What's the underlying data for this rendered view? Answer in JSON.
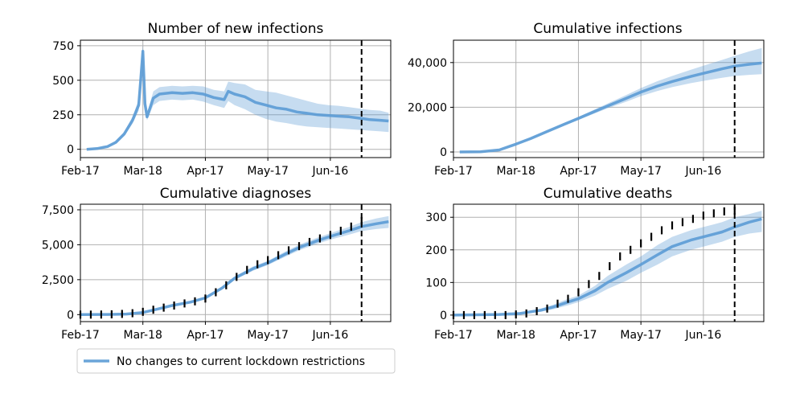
{
  "chart_data": [
    {
      "type": "line",
      "title": "Number of new infections",
      "xlabel": "",
      "ylabel": "",
      "x_ticks": [
        "Feb-17",
        "Mar-18",
        "Apr-17",
        "May-17",
        "Jun-16"
      ],
      "y_ticks": [
        "0",
        "250",
        "500",
        "750"
      ],
      "ylim": [
        -60,
        790
      ],
      "projection_start": "Jul-01",
      "series": [
        {
          "name": "No changes to current lockdown restrictions",
          "x": [
            "Feb-20",
            "Feb-25",
            "Mar-01",
            "Mar-05",
            "Mar-09",
            "Mar-13",
            "Mar-16",
            "Mar-17",
            "Mar-18",
            "Mar-19",
            "Mar-20",
            "Mar-23",
            "Mar-26",
            "Apr-01",
            "Apr-06",
            "Apr-11",
            "Apr-16",
            "Apr-21",
            "Apr-26",
            "Apr-28",
            "May-01",
            "May-06",
            "May-11",
            "May-16",
            "May-21",
            "May-26",
            "May-31",
            "Jun-05",
            "Jun-10",
            "Jun-15",
            "Jun-20",
            "Jun-25",
            "Jun-30",
            "Jul-05",
            "Jul-10",
            "Jul-14"
          ],
          "values": [
            0,
            5,
            20,
            50,
            110,
            210,
            320,
            510,
            710,
            330,
            235,
            370,
            400,
            410,
            405,
            410,
            400,
            375,
            360,
            420,
            400,
            380,
            340,
            320,
            300,
            290,
            270,
            260,
            250,
            245,
            240,
            235,
            225,
            215,
            210,
            205
          ],
          "lower": [
            0,
            3,
            15,
            40,
            95,
            185,
            280,
            460,
            650,
            290,
            210,
            320,
            350,
            360,
            355,
            360,
            345,
            320,
            300,
            350,
            320,
            290,
            250,
            220,
            200,
            190,
            175,
            165,
            160,
            155,
            150,
            145,
            140,
            135,
            130,
            125
          ],
          "upper": [
            0,
            8,
            25,
            60,
            125,
            235,
            360,
            560,
            760,
            370,
            260,
            420,
            450,
            460,
            455,
            460,
            455,
            430,
            420,
            490,
            480,
            470,
            430,
            420,
            410,
            390,
            370,
            350,
            330,
            320,
            315,
            305,
            295,
            285,
            280,
            265
          ]
        }
      ]
    },
    {
      "type": "line",
      "title": "Cumulative infections",
      "xlabel": "",
      "ylabel": "",
      "x_ticks": [
        "Feb-17",
        "Mar-18",
        "Apr-17",
        "May-17",
        "Jun-16"
      ],
      "y_ticks": [
        "0",
        "20,000",
        "40,000"
      ],
      "ylim": [
        -2500,
        50000
      ],
      "projection_start": "Jul-01",
      "series": [
        {
          "name": "No changes to current lockdown restrictions",
          "x": [
            "Feb-20",
            "Mar-01",
            "Mar-10",
            "Mar-18",
            "Mar-25",
            "Apr-01",
            "Apr-10",
            "Apr-17",
            "Apr-25",
            "May-01",
            "May-10",
            "May-17",
            "May-25",
            "Jun-01",
            "Jun-10",
            "Jun-16",
            "Jun-25",
            "Jul-01",
            "Jul-08",
            "Jul-14"
          ],
          "values": [
            0,
            100,
            900,
            3500,
            6000,
            8800,
            12300,
            15000,
            18200,
            20600,
            24000,
            26800,
            29500,
            31500,
            33800,
            35200,
            37200,
            38400,
            39200,
            39800
          ],
          "lower": [
            0,
            80,
            800,
            3300,
            5700,
            8400,
            11700,
            14300,
            17300,
            19500,
            22500,
            25000,
            27300,
            29000,
            30800,
            31800,
            33200,
            34000,
            34500,
            34800
          ],
          "upper": [
            0,
            120,
            1000,
            3700,
            6300,
            9200,
            12900,
            15700,
            19100,
            21700,
            25500,
            28600,
            31700,
            34000,
            36800,
            38600,
            41200,
            43000,
            45000,
            46500
          ]
        }
      ]
    },
    {
      "type": "line",
      "title": "Cumulative diagnoses",
      "xlabel": "",
      "ylabel": "",
      "x_ticks": [
        "Feb-17",
        "Mar-18",
        "Apr-17",
        "May-17",
        "Jun-16"
      ],
      "y_ticks": [
        "0",
        "2,500",
        "5,000",
        "7,500"
      ],
      "ylim": [
        -500,
        7900
      ],
      "projection_start": "Jul-01",
      "series": [
        {
          "name": "No changes to current lockdown restrictions",
          "x": [
            "Feb-17",
            "Mar-01",
            "Mar-10",
            "Mar-18",
            "Mar-25",
            "Apr-01",
            "Apr-10",
            "Apr-17",
            "Apr-25",
            "May-01",
            "May-10",
            "May-17",
            "May-25",
            "Jun-01",
            "Jun-10",
            "Jun-16",
            "Jun-25",
            "Jul-01",
            "Jul-08",
            "Jul-14"
          ],
          "values": [
            0,
            10,
            40,
            150,
            400,
            650,
            900,
            1200,
            1900,
            2600,
            3300,
            3700,
            4300,
            4800,
            5300,
            5600,
            6000,
            6300,
            6500,
            6650
          ],
          "lower": [
            0,
            8,
            30,
            130,
            370,
            610,
            850,
            1130,
            1800,
            2480,
            3150,
            3550,
            4120,
            4600,
            5080,
            5370,
            5720,
            5980,
            6120,
            6200
          ],
          "upper": [
            0,
            12,
            50,
            170,
            430,
            690,
            950,
            1270,
            2000,
            2720,
            3450,
            3850,
            4480,
            5000,
            5520,
            5830,
            6280,
            6620,
            6880,
            7050
          ]
        }
      ],
      "observed": {
        "x": [
          "Feb-17",
          "Feb-22",
          "Feb-27",
          "Mar-03",
          "Mar-08",
          "Mar-13",
          "Mar-18",
          "Mar-23",
          "Mar-28",
          "Apr-02",
          "Apr-07",
          "Apr-12",
          "Apr-17",
          "Apr-22",
          "Apr-27",
          "May-02",
          "May-07",
          "May-12",
          "May-17",
          "May-22",
          "May-27",
          "Jun-01",
          "Jun-06",
          "Jun-11",
          "Jun-16",
          "Jun-21",
          "Jun-26",
          "Jul-01"
        ],
        "values": [
          0,
          0,
          5,
          20,
          50,
          100,
          200,
          350,
          500,
          650,
          800,
          950,
          1150,
          1600,
          2100,
          2700,
          3200,
          3600,
          3900,
          4250,
          4600,
          4900,
          5200,
          5450,
          5700,
          6000,
          6300,
          6700
        ]
      }
    },
    {
      "type": "line",
      "title": "Cumulative deaths",
      "xlabel": "",
      "ylabel": "",
      "x_ticks": [
        "Feb-17",
        "Mar-18",
        "Apr-17",
        "May-17",
        "Jun-16"
      ],
      "y_ticks": [
        "0",
        "100",
        "200",
        "300"
      ],
      "ylim": [
        -20,
        340
      ],
      "projection_start": "Jul-01",
      "series": [
        {
          "name": "No changes to current lockdown restrictions",
          "x": [
            "Feb-17",
            "Mar-10",
            "Mar-20",
            "Mar-30",
            "Apr-05",
            "Apr-12",
            "Apr-17",
            "Apr-25",
            "May-01",
            "May-10",
            "May-17",
            "May-25",
            "Jun-01",
            "Jun-10",
            "Jun-16",
            "Jun-25",
            "Jul-01",
            "Jul-08",
            "Jul-14"
          ],
          "values": [
            0,
            2,
            5,
            15,
            25,
            40,
            50,
            75,
            100,
            130,
            155,
            185,
            210,
            230,
            240,
            255,
            270,
            285,
            295
          ],
          "lower": [
            0,
            1,
            4,
            10,
            18,
            30,
            40,
            60,
            80,
            105,
            130,
            155,
            180,
            200,
            210,
            225,
            240,
            250,
            255
          ],
          "upper": [
            0,
            3,
            7,
            20,
            32,
            50,
            60,
            90,
            120,
            155,
            180,
            215,
            240,
            260,
            270,
            285,
            300,
            310,
            320
          ]
        }
      ],
      "observed": {
        "x": [
          "Feb-17",
          "Feb-22",
          "Feb-27",
          "Mar-03",
          "Mar-08",
          "Mar-13",
          "Mar-18",
          "Mar-23",
          "Mar-28",
          "Apr-02",
          "Apr-07",
          "Apr-12",
          "Apr-17",
          "Apr-22",
          "Apr-27",
          "May-02",
          "May-07",
          "May-12",
          "May-17",
          "May-22",
          "May-27",
          "Jun-01",
          "Jun-06",
          "Jun-11",
          "Jun-16",
          "Jun-21",
          "Jun-26",
          "Jul-01"
        ],
        "values": [
          0,
          0,
          0,
          0,
          0,
          0,
          2,
          5,
          12,
          20,
          35,
          50,
          70,
          95,
          120,
          150,
          180,
          200,
          220,
          240,
          260,
          275,
          285,
          295,
          305,
          312,
          318,
          320
        ]
      }
    }
  ],
  "legend": {
    "label": "No changes to current lockdown restrictions",
    "color": "#5b9bd5",
    "location": "bottom-left"
  },
  "colors": {
    "model": "#5b9bd5",
    "observed": "#000000"
  }
}
